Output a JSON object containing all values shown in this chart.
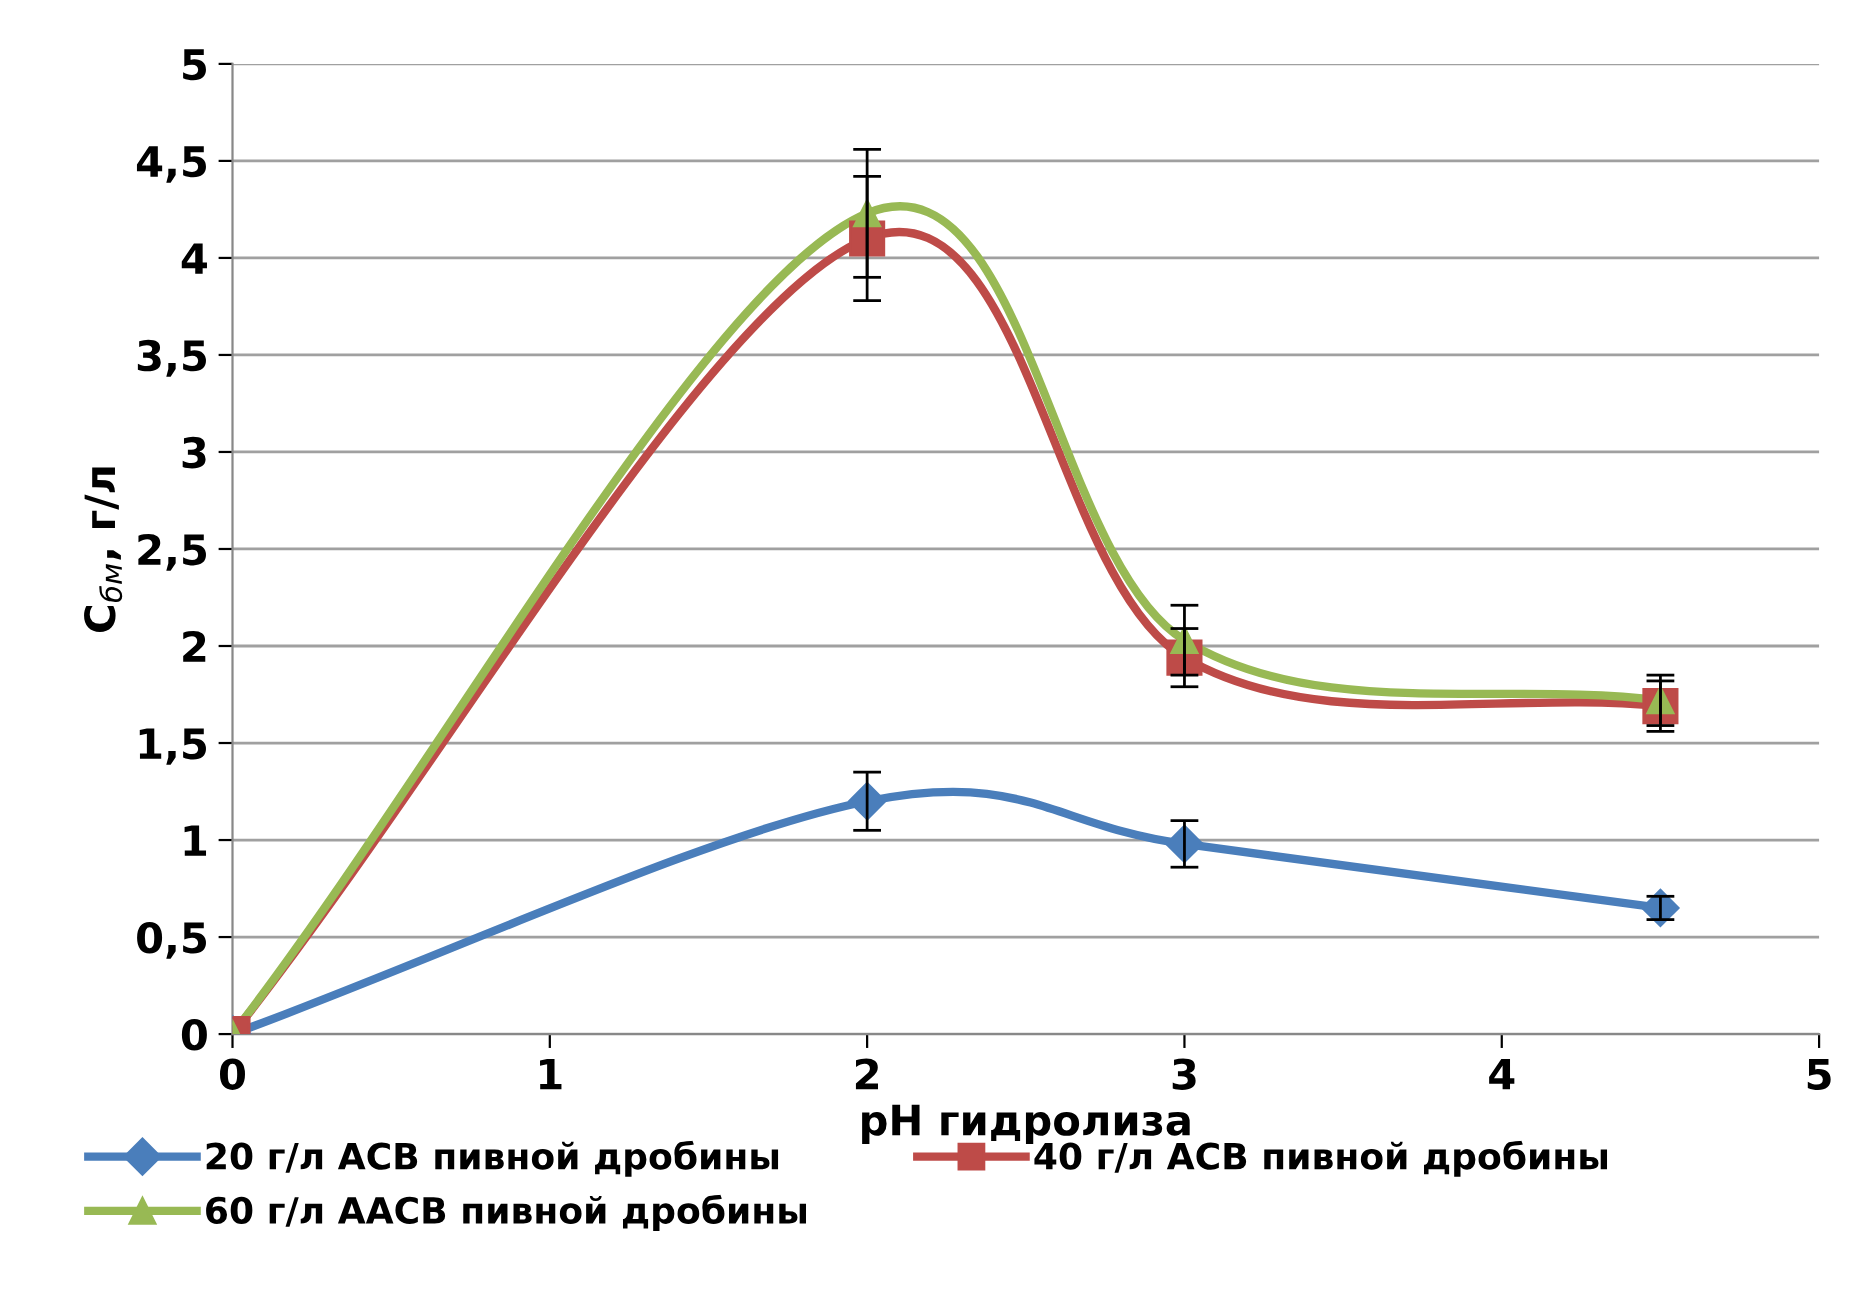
{
  "chart_data": {
    "type": "line",
    "xlabel": "pH гидролиза",
    "ylabel": "C$_{бм}$, г/л",
    "x": [
      0,
      2,
      3,
      4.5
    ],
    "series": [
      {
        "name": "20 г/л АСВ пивной дробины",
        "color": "#4a7ebb",
        "marker": "diamond",
        "values": [
          0,
          1.2,
          0.98,
          0.65
        ],
        "errors": [
          null,
          0.15,
          0.12,
          0.06
        ]
      },
      {
        "name": "40 г/л АСВ пивной дробины",
        "color": "#be4b48",
        "marker": "square",
        "values": [
          0,
          4.1,
          1.94,
          1.69
        ],
        "errors": [
          null,
          0.32,
          0.15,
          0.13
        ]
      },
      {
        "name": "60 г/л ААСВ пивной дробины",
        "color": "#98b954",
        "marker": "triangle",
        "values": [
          0,
          4.23,
          2.03,
          1.72
        ],
        "errors": [
          null,
          0.33,
          0.18,
          0.13
        ]
      }
    ],
    "xlim": [
      0,
      5
    ],
    "xticks": [
      0,
      1,
      2,
      3,
      4,
      5
    ],
    "ylim": [
      0,
      5
    ],
    "yticks": [
      0,
      {
        "value": 0.5,
        "label": "0,5"
      },
      1,
      {
        "value": 1.5,
        "label": "1,5"
      },
      2,
      {
        "value": 2.5,
        "label": "2,5"
      },
      3,
      {
        "value": 3.5,
        "label": "3,5"
      },
      4,
      {
        "value": 4.5,
        "label": "4,5"
      },
      5
    ],
    "grid": "y",
    "legend": "bottom",
    "line_style": "solid"
  }
}
